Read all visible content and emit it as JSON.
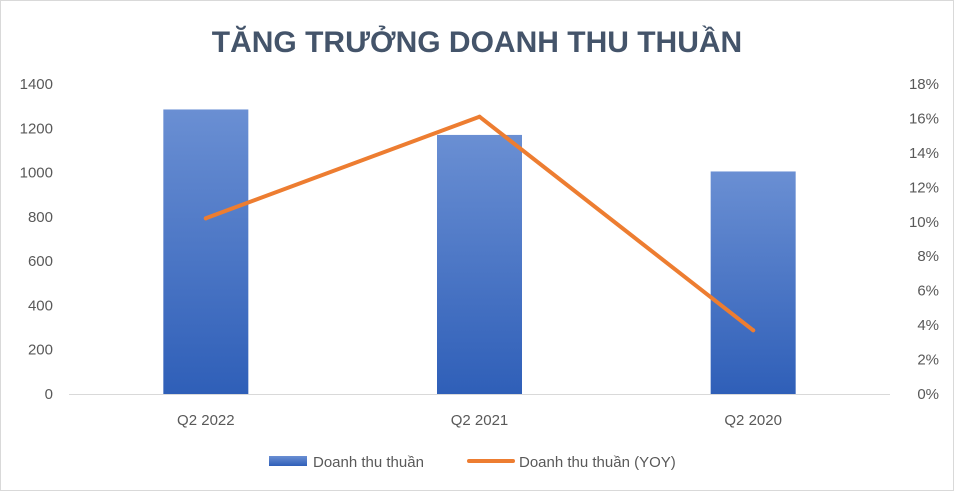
{
  "chart_data": {
    "type": "bar",
    "title": "TĂNG TRƯỞNG DOANH THU THUẦN",
    "categories": [
      "Q2 2022",
      "Q2 2021",
      "Q2 2020"
    ],
    "series": [
      {
        "name": "Doanh thu thuần",
        "type": "bar",
        "axis": "left",
        "color": "#4472c4",
        "values": [
          1285,
          1170,
          1005
        ]
      },
      {
        "name": "Doanh thu thuần (YOY)",
        "type": "line",
        "axis": "right",
        "color": "#ed7d31",
        "values": [
          0.102,
          0.161,
          0.037
        ]
      }
    ],
    "y_left": {
      "min": 0,
      "max": 1400,
      "ticks": [
        "0",
        "200",
        "400",
        "600",
        "800",
        "1000",
        "1200",
        "1400"
      ]
    },
    "y_right": {
      "min": 0,
      "max": 0.18,
      "ticks": [
        "0%",
        "2%",
        "4%",
        "6%",
        "8%",
        "10%",
        "12%",
        "14%",
        "16%",
        "18%"
      ]
    },
    "grid": false,
    "legend": "bottom"
  }
}
